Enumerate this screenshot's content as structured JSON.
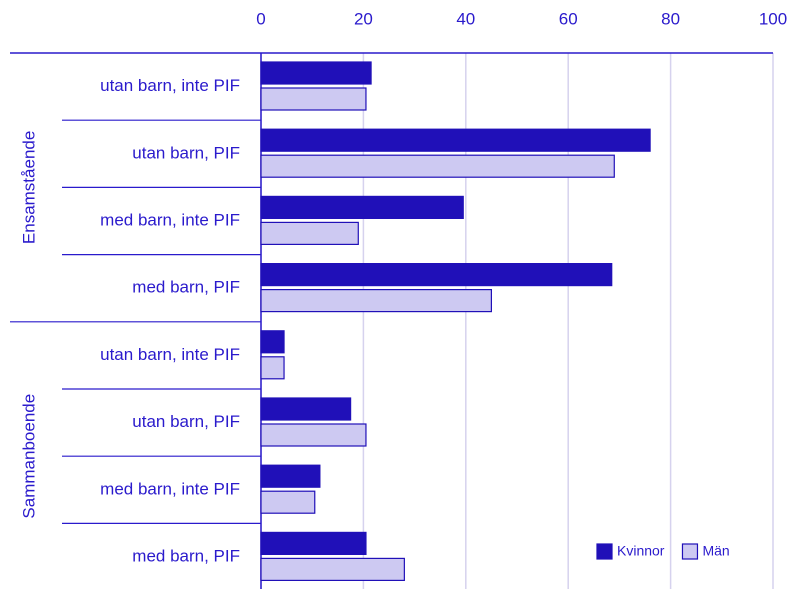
{
  "chart_data": {
    "type": "bar",
    "orientation": "horizontal",
    "groups": [
      {
        "name": "Ensamstående",
        "categories": [
          "utan barn, inte PIF",
          "utan barn, PIF",
          "med barn, inte PIF",
          "med barn, PIF"
        ]
      },
      {
        "name": "Sammanboende",
        "categories": [
          "utan barn, inte PIF",
          "utan barn, PIF",
          "med barn, inte PIF",
          "med barn, PIF"
        ]
      }
    ],
    "series": [
      {
        "name": "Kvinnor",
        "color": "#2010b8",
        "values": [
          21.5,
          76,
          39.5,
          68.5,
          4.5,
          17.5,
          11.5,
          20.5
        ]
      },
      {
        "name": "Män",
        "color": "#cdc9f2",
        "values": [
          20.5,
          69,
          19,
          45,
          4.5,
          20.5,
          10.5,
          28
        ]
      }
    ],
    "xlim": [
      0,
      100
    ],
    "xticks": [
      0,
      20,
      40,
      60,
      80,
      100
    ],
    "grid": true,
    "legend": "lower right"
  }
}
